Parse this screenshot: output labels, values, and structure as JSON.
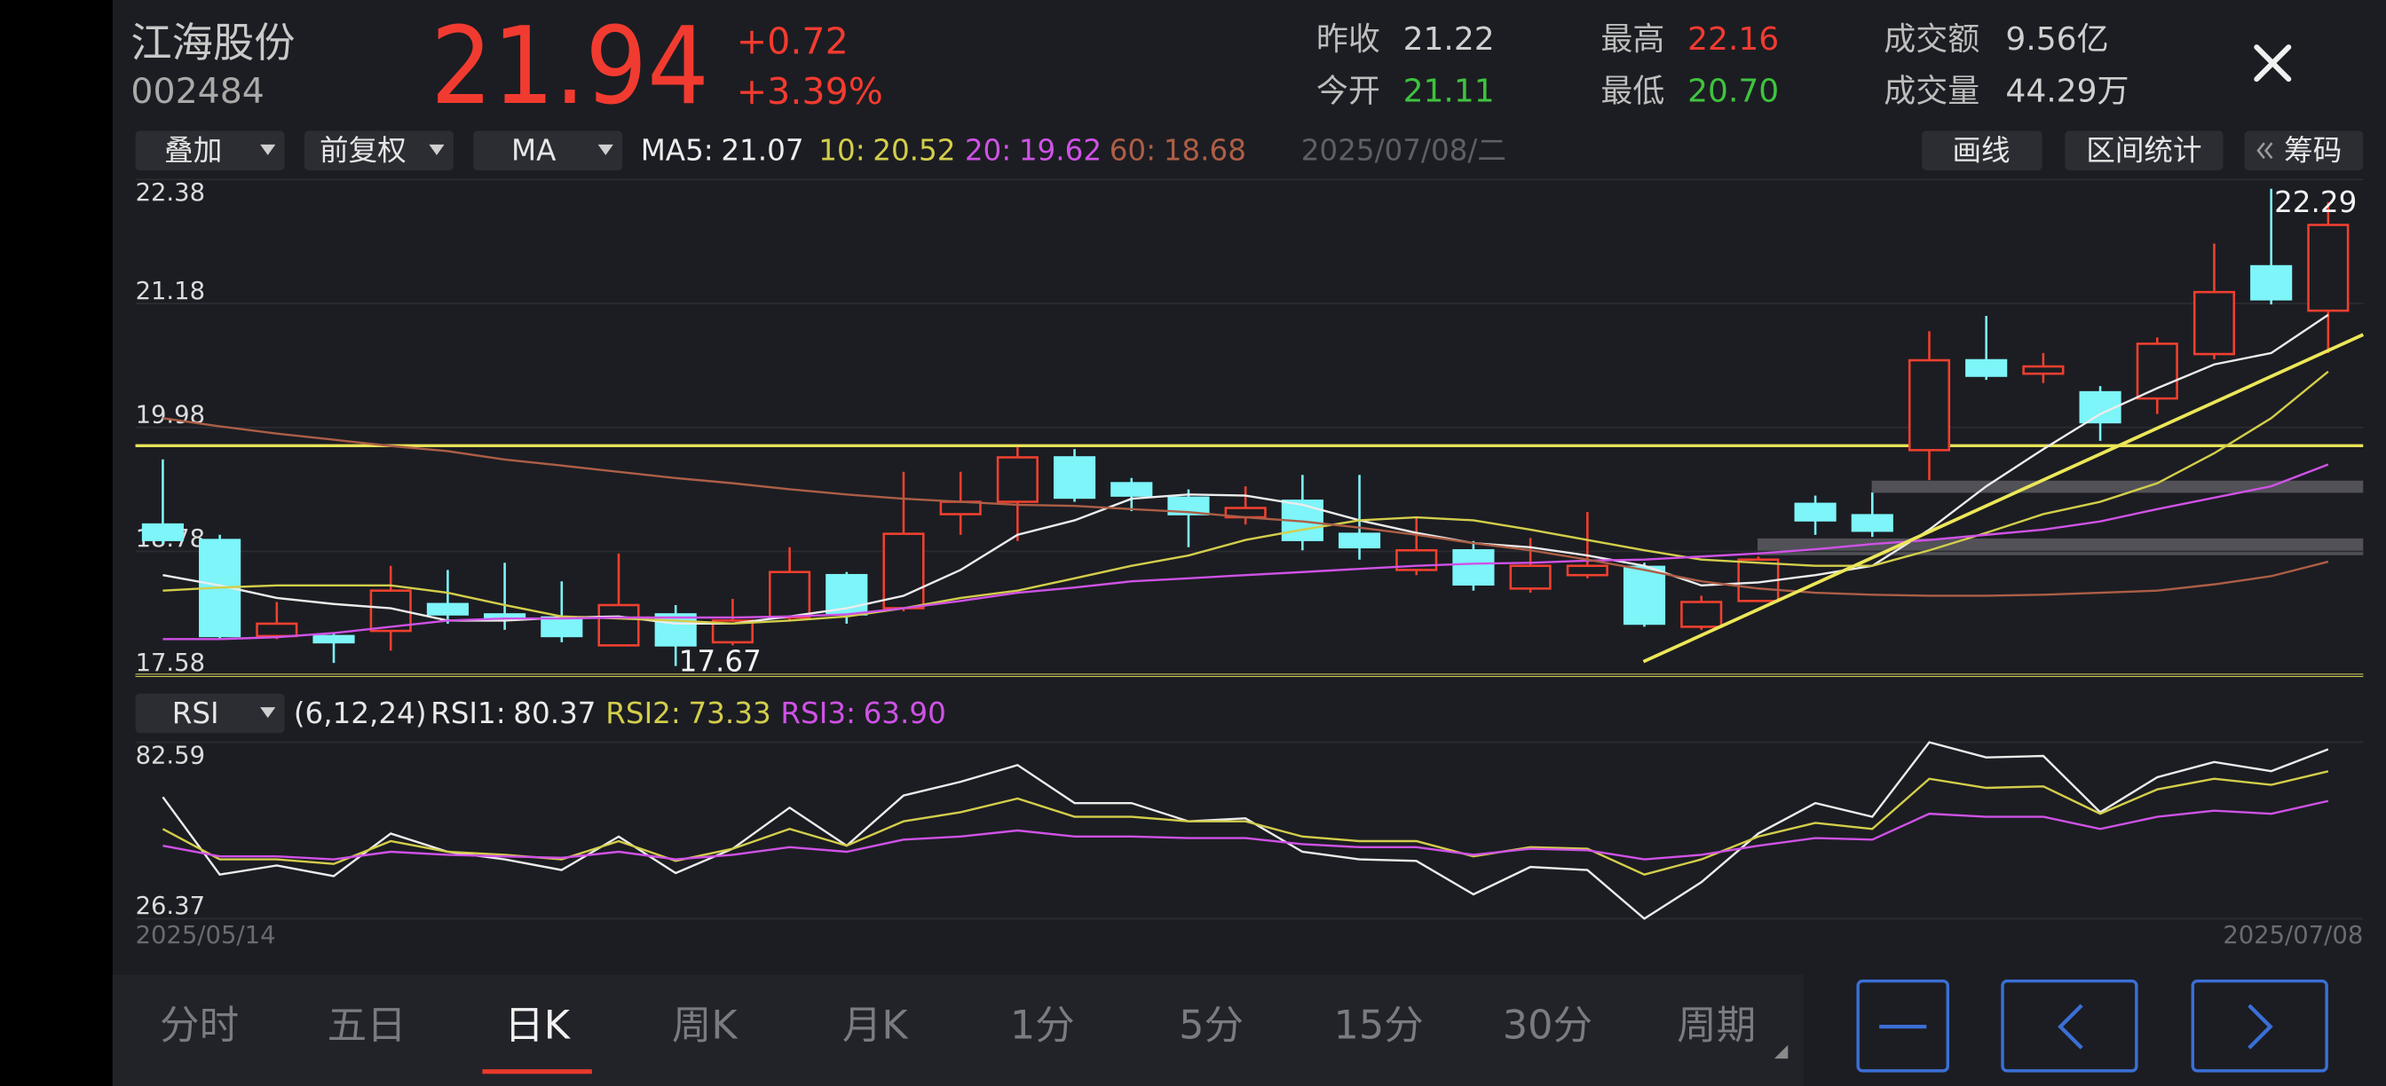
{
  "header": {
    "name": "江海股份",
    "code": "002484",
    "price": "21.94",
    "change": "+0.72",
    "change_pct": "+3.39%",
    "stats": [
      {
        "label": "昨收",
        "value": "21.22"
      },
      {
        "label": "今开",
        "value": "21.11"
      },
      {
        "label": "最高",
        "value": "22.16"
      },
      {
        "label": "最低",
        "value": "20.70"
      },
      {
        "label": "成交额",
        "value": "9.56亿"
      },
      {
        "label": "成交量",
        "value": "44.29万"
      }
    ]
  },
  "toolbar": {
    "dropdowns": [
      "叠加",
      "前复权",
      "MA"
    ],
    "date": "2025/07/08/二",
    "buttons": [
      "画线",
      "区间统计",
      "筹码"
    ]
  },
  "indicator_bar": {
    "dropdown": "RSI",
    "params": "(6,12,24)"
  },
  "tabs": [
    "分时",
    "五日",
    "日K",
    "周K",
    "月K",
    "1分",
    "5分",
    "15分",
    "30分",
    "周期"
  ],
  "selected_tab": 2,
  "chart_data": [
    {
      "type": "candlestick",
      "categories": [
        "2025/05/14",
        null,
        null,
        null,
        null,
        null,
        null,
        null,
        null,
        null,
        null,
        null,
        null,
        null,
        null,
        null,
        null,
        null,
        null,
        null,
        null,
        null,
        null,
        null,
        null,
        null,
        null,
        null,
        null,
        null,
        null,
        null,
        null,
        null,
        null,
        null,
        null,
        null,
        "2025/07/08"
      ],
      "open": [
        19.04,
        18.89,
        17.96,
        17.96,
        18.01,
        18.27,
        18.17,
        18.14,
        17.87,
        18.17,
        17.9,
        18.14,
        18.55,
        18.23,
        19.14,
        19.26,
        19.69,
        19.44,
        19.3,
        19.11,
        19.27,
        18.95,
        18.6,
        18.79,
        18.42,
        18.55,
        18.63,
        18.05,
        18.3,
        19.24,
        19.13,
        19.76,
        20.63,
        20.5,
        20.32,
        20.26,
        20.69,
        21.54,
        21.11
      ],
      "high": [
        19.67,
        18.94,
        18.29,
        17.99,
        18.64,
        18.6,
        18.67,
        18.49,
        18.76,
        18.26,
        18.32,
        18.82,
        18.58,
        19.55,
        19.55,
        19.79,
        19.77,
        19.49,
        19.38,
        19.41,
        19.52,
        19.52,
        19.11,
        18.88,
        18.91,
        19.16,
        18.67,
        18.35,
        18.73,
        19.32,
        19.35,
        20.91,
        21.06,
        20.7,
        20.38,
        20.85,
        21.76,
        22.29,
        22.16
      ],
      "low": [
        18.85,
        17.93,
        17.93,
        17.7,
        17.82,
        18.08,
        18.02,
        17.9,
        17.86,
        17.67,
        17.87,
        18.11,
        18.08,
        18.2,
        18.94,
        18.88,
        19.26,
        19.17,
        18.82,
        19.04,
        18.79,
        18.7,
        18.55,
        18.4,
        18.38,
        18.52,
        18.05,
        18.02,
        18.29,
        18.94,
        18.92,
        19.47,
        20.44,
        20.41,
        19.85,
        20.11,
        20.64,
        21.17,
        20.7
      ],
      "close": [
        18.89,
        17.96,
        18.08,
        17.9,
        18.4,
        18.17,
        18.14,
        17.96,
        18.26,
        17.87,
        18.11,
        18.58,
        18.17,
        18.95,
        19.26,
        19.69,
        19.3,
        19.32,
        19.14,
        19.2,
        18.89,
        18.82,
        18.79,
        18.46,
        18.64,
        18.64,
        18.08,
        18.29,
        18.7,
        19.08,
        18.98,
        20.63,
        20.48,
        20.57,
        20.03,
        20.79,
        21.29,
        21.22,
        21.94
      ],
      "up_color": "#f0402f",
      "down_color": "#7df5f9",
      "ylim": [
        17.58,
        22.38
      ],
      "yticks": [
        22.38,
        21.18,
        19.98,
        18.78,
        17.58
      ],
      "grid": true,
      "series": [
        {
          "name": "MA5:",
          "color": "#ececec",
          "legend_value": "21.07",
          "values": [
            18.55,
            18.45,
            18.33,
            18.27,
            18.23,
            18.11,
            18.11,
            18.14,
            18.15,
            18.08,
            18.08,
            18.15,
            18.23,
            18.35,
            18.6,
            18.94,
            19.08,
            19.29,
            19.33,
            19.32,
            19.23,
            19.08,
            18.96,
            18.86,
            18.82,
            18.74,
            18.64,
            18.45,
            18.48,
            18.55,
            18.64,
            18.99,
            19.41,
            19.77,
            20.11,
            20.36,
            20.59,
            20.7,
            21.07
          ]
        },
        {
          "name": "10:",
          "color": "#d3ce4b",
          "legend_value": "20.52",
          "values": [
            18.4,
            18.43,
            18.45,
            18.45,
            18.45,
            18.38,
            18.26,
            18.15,
            18.13,
            18.11,
            18.08,
            18.11,
            18.15,
            18.23,
            18.33,
            18.4,
            18.52,
            18.64,
            18.74,
            18.89,
            18.99,
            19.08,
            19.11,
            19.08,
            18.99,
            18.89,
            18.79,
            18.7,
            18.67,
            18.64,
            18.64,
            18.79,
            18.96,
            19.14,
            19.26,
            19.44,
            19.73,
            20.07,
            20.52
          ]
        },
        {
          "name": "20:",
          "color": "#cf52e6",
          "legend_value": "19.62",
          "values": [
            17.93,
            17.93,
            17.95,
            17.99,
            18.05,
            18.11,
            18.13,
            18.13,
            18.14,
            18.14,
            18.14,
            18.15,
            18.17,
            18.23,
            18.3,
            18.38,
            18.43,
            18.49,
            18.52,
            18.55,
            18.58,
            18.61,
            18.64,
            18.66,
            18.67,
            18.69,
            18.7,
            18.73,
            18.76,
            18.8,
            18.85,
            18.89,
            18.94,
            18.99,
            19.07,
            19.19,
            19.3,
            19.41,
            19.62
          ]
        },
        {
          "name": "60:",
          "color": "#ad5e46",
          "legend_value": "18.68",
          "values": [
            20.07,
            19.99,
            19.92,
            19.86,
            19.8,
            19.75,
            19.67,
            19.61,
            19.55,
            19.49,
            19.44,
            19.38,
            19.33,
            19.29,
            19.26,
            19.23,
            19.22,
            19.19,
            19.16,
            19.11,
            19.07,
            19.01,
            18.94,
            18.86,
            18.79,
            18.7,
            18.6,
            18.49,
            18.42,
            18.38,
            18.36,
            18.35,
            18.35,
            18.36,
            18.38,
            18.4,
            18.46,
            18.54,
            18.68
          ]
        }
      ]
    },
    {
      "type": "line",
      "ylim": [
        26.37,
        82.59
      ],
      "yticks": [
        82.59,
        26.37
      ],
      "grid": true,
      "series": [
        {
          "name": "RSI1:",
          "color": "#ececec",
          "legend_value": "80.37",
          "values": [
            65.14,
            40.42,
            43.33,
            39.94,
            53.51,
            47.69,
            45.27,
            41.88,
            52.54,
            40.91,
            48.66,
            61.75,
            49.63,
            65.63,
            69.99,
            75.32,
            63.2,
            63.2,
            57.39,
            58.35,
            47.69,
            45.27,
            44.78,
            34.12,
            42.84,
            41.88,
            26.37,
            38.0,
            53.51,
            63.2,
            58.84,
            82.59,
            77.74,
            78.23,
            60.29,
            71.44,
            76.29,
            73.38,
            80.37
          ]
        },
        {
          "name": "RSI2:",
          "color": "#d3ce4b",
          "legend_value": "73.33",
          "values": [
            54.96,
            45.27,
            45.27,
            43.81,
            51.08,
            47.69,
            46.72,
            45.27,
            51.08,
            44.78,
            48.66,
            54.96,
            49.63,
            57.39,
            60.29,
            64.66,
            58.84,
            58.84,
            57.39,
            57.39,
            52.54,
            51.08,
            51.08,
            46.24,
            49.15,
            48.66,
            40.42,
            45.27,
            52.54,
            56.9,
            54.96,
            70.96,
            68.05,
            68.53,
            59.81,
            67.56,
            70.96,
            69.02,
            73.33
          ]
        },
        {
          "name": "RSI3:",
          "color": "#cf52e6",
          "legend_value": "63.90",
          "values": [
            49.63,
            46.24,
            46.24,
            45.27,
            47.69,
            46.72,
            46.24,
            45.75,
            47.69,
            45.27,
            46.72,
            49.15,
            47.69,
            51.57,
            52.54,
            54.48,
            52.54,
            52.54,
            52.05,
            52.05,
            50.12,
            49.15,
            49.15,
            46.72,
            48.66,
            48.18,
            45.27,
            46.72,
            49.63,
            52.05,
            51.57,
            59.81,
            58.84,
            58.84,
            54.96,
            58.84,
            60.78,
            59.81,
            63.9
          ]
        }
      ]
    }
  ]
}
